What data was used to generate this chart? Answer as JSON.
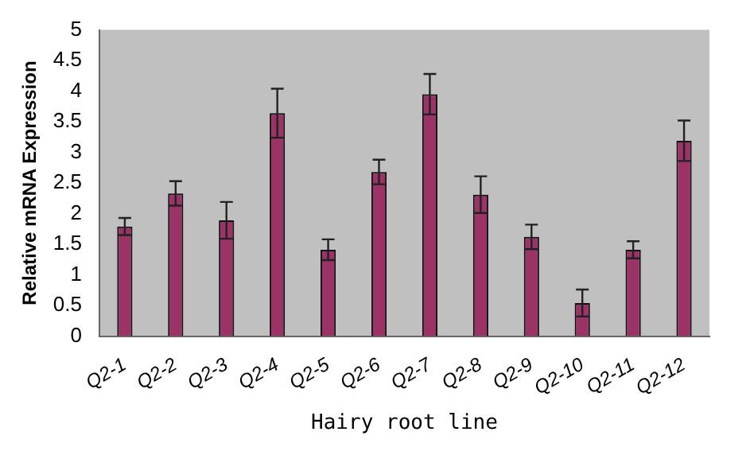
{
  "chart_data": {
    "type": "bar",
    "xlabel": "Hairy root line",
    "ylabel": "Relative mRNA Expression",
    "categories": [
      "Q2-1",
      "Q2-2",
      "Q2-3",
      "Q2-4",
      "Q2-5",
      "Q2-6",
      "Q2-7",
      "Q2-8",
      "Q2-9",
      "Q2-10",
      "Q2-11",
      "Q2-12"
    ],
    "values": [
      1.79,
      2.33,
      1.89,
      3.64,
      1.41,
      2.68,
      3.95,
      2.31,
      1.62,
      0.54,
      1.41,
      3.19
    ],
    "errors": [
      0.14,
      0.2,
      0.3,
      0.4,
      0.17,
      0.2,
      0.33,
      0.3,
      0.2,
      0.22,
      0.14,
      0.33
    ],
    "color": "#9b3366",
    "ylim": [
      0,
      5
    ],
    "yticks": [
      0,
      0.5,
      1,
      1.5,
      2,
      2.5,
      3,
      3.5,
      4,
      4.5,
      5
    ],
    "grid": false,
    "legend": false
  }
}
